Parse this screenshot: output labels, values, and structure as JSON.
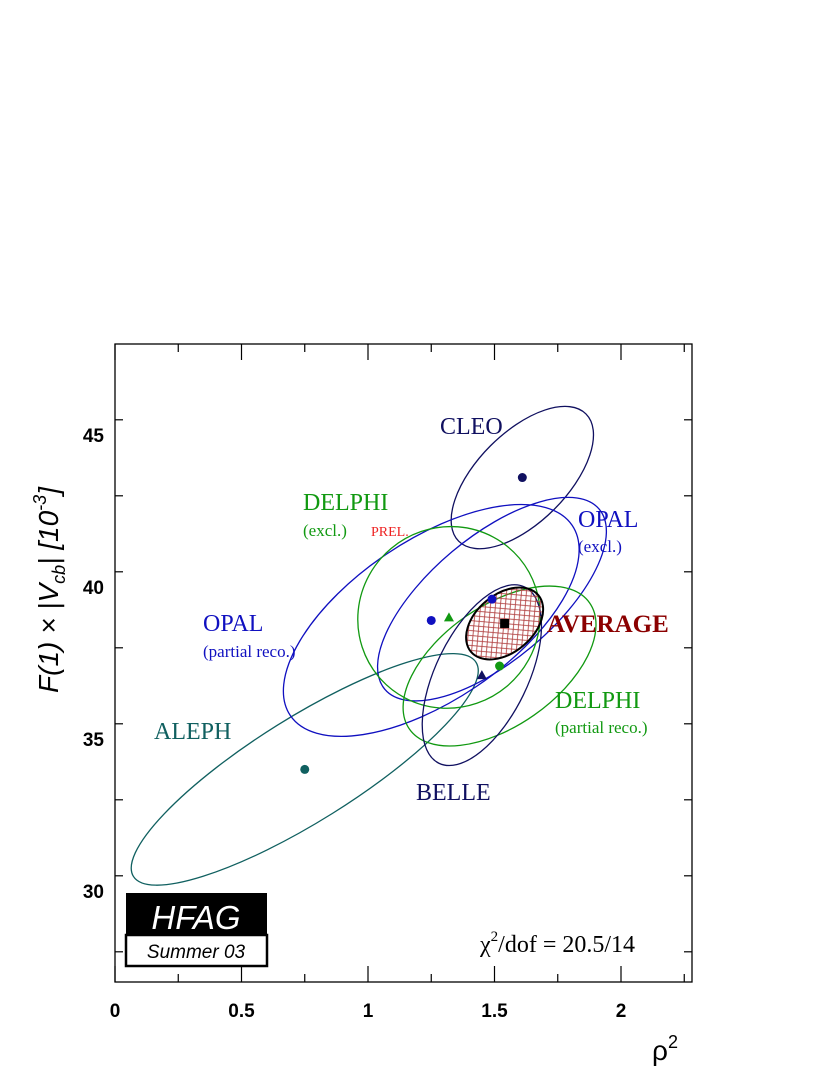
{
  "chart_data": {
    "type": "scatter",
    "title": "",
    "xlim": [
      0,
      2.3
    ],
    "ylim": [
      27,
      48
    ],
    "x_ticks": [
      0,
      0.5,
      1,
      1.5,
      2
    ],
    "x_tick_labels": [
      "0",
      "0.5",
      "1",
      "1.5",
      "2"
    ],
    "y_ticks": [
      30,
      35,
      40,
      45
    ],
    "y_tick_labels": [
      "30",
      "35",
      "40",
      "45"
    ],
    "xlabel": "ρ²",
    "ylabel": "F(1) × |Vcb| [10⁻³]",
    "grid": false,
    "measurements": [
      {
        "label": "CLEO",
        "x": 1.61,
        "y": 43.6,
        "marker": "circle",
        "color": "#101060"
      },
      {
        "label": "OPAL (excl.)",
        "x": 1.49,
        "y": 39.6,
        "marker": "circle",
        "color": "#1010c0"
      },
      {
        "label": "OPAL (partial reco.)",
        "x": 1.25,
        "y": 38.9,
        "marker": "circle",
        "color": "#1010c0"
      },
      {
        "label": "DELPHI (excl.) PREL.",
        "x": 1.32,
        "y": 39.0,
        "marker": "triangle",
        "color": "#119911"
      },
      {
        "label": "DELPHI (partial reco.)",
        "x": 1.52,
        "y": 37.4,
        "marker": "circle",
        "color": "#119911"
      },
      {
        "label": "BELLE",
        "x": 1.45,
        "y": 37.1,
        "marker": "triangle",
        "color": "#101060"
      },
      {
        "label": "ALEPH",
        "x": 0.75,
        "y": 34.0,
        "marker": "circle",
        "color": "#106060"
      },
      {
        "label": "AVERAGE",
        "x": 1.54,
        "y": 38.8,
        "marker": "square",
        "color": "#000000"
      }
    ],
    "ellipses": [
      {
        "name": "ALEPH",
        "cx": 0.75,
        "cy": 34.0,
        "a_px": 202,
        "b_px": 52,
        "angle_deg": -32,
        "color": "#106060"
      },
      {
        "name": "CLEO",
        "cx": 1.61,
        "cy": 43.6,
        "a_px": 90,
        "b_px": 45,
        "angle_deg": -45,
        "color": "#101060"
      },
      {
        "name": "OPAL (excl.)",
        "cx": 1.49,
        "cy": 39.6,
        "a_px": 140,
        "b_px": 62,
        "angle_deg": -40,
        "color": "#1010c0"
      },
      {
        "name": "OPAL (partial reco.)",
        "cx": 1.25,
        "cy": 38.9,
        "a_px": 170,
        "b_px": 80,
        "angle_deg": -34,
        "color": "#1010c0"
      },
      {
        "name": "DELPHI (excl.)",
        "cx": 1.32,
        "cy": 39.0,
        "a_px": 92,
        "b_px": 90,
        "angle_deg": -40,
        "color": "#119911"
      },
      {
        "name": "DELPHI (partial reco.)",
        "cx": 1.52,
        "cy": 37.4,
        "a_px": 110,
        "b_px": 60,
        "angle_deg": -35,
        "color": "#119911"
      },
      {
        "name": "BELLE",
        "cx": 1.45,
        "cy": 37.1,
        "a_px": 98,
        "b_px": 46,
        "angle_deg": -64,
        "color": "#101060"
      },
      {
        "name": "AVERAGE",
        "cx": 1.54,
        "cy": 38.8,
        "a_px": 44,
        "b_px": 29,
        "angle_deg": -40,
        "color": "#000000",
        "hatched": true,
        "hatch_color": "#b04040"
      }
    ],
    "labels": [
      {
        "key": "cleo",
        "lines": [
          "CLEO"
        ],
        "color": "#101060"
      },
      {
        "key": "delphi_excl",
        "lines": [
          "DELPHI",
          "(excl.)",
          "PREL."
        ],
        "color": "#119911",
        "prel_color": "#ee2222"
      },
      {
        "key": "opal_excl",
        "lines": [
          "OPAL",
          "(excl.)"
        ],
        "color": "#1010c0"
      },
      {
        "key": "opal_partial",
        "lines": [
          "OPAL",
          "(partial reco.)"
        ],
        "color": "#1010c0"
      },
      {
        "key": "average",
        "lines": [
          "AVERAGE"
        ],
        "color": "#8b0000"
      },
      {
        "key": "delphi_partial",
        "lines": [
          "DELPHI",
          "(partial reco.)"
        ],
        "color": "#119911"
      },
      {
        "key": "aleph",
        "lines": [
          "ALEPH"
        ],
        "color": "#106060"
      },
      {
        "key": "belle",
        "lines": [
          "BELLE"
        ],
        "color": "#101060"
      }
    ],
    "chi2": "χ²/dof = 20.5/14"
  },
  "logo": {
    "title": "HFAG",
    "subtitle": "Summer 03"
  },
  "colors": {
    "axis": "#000000",
    "background": "#ffffff"
  }
}
